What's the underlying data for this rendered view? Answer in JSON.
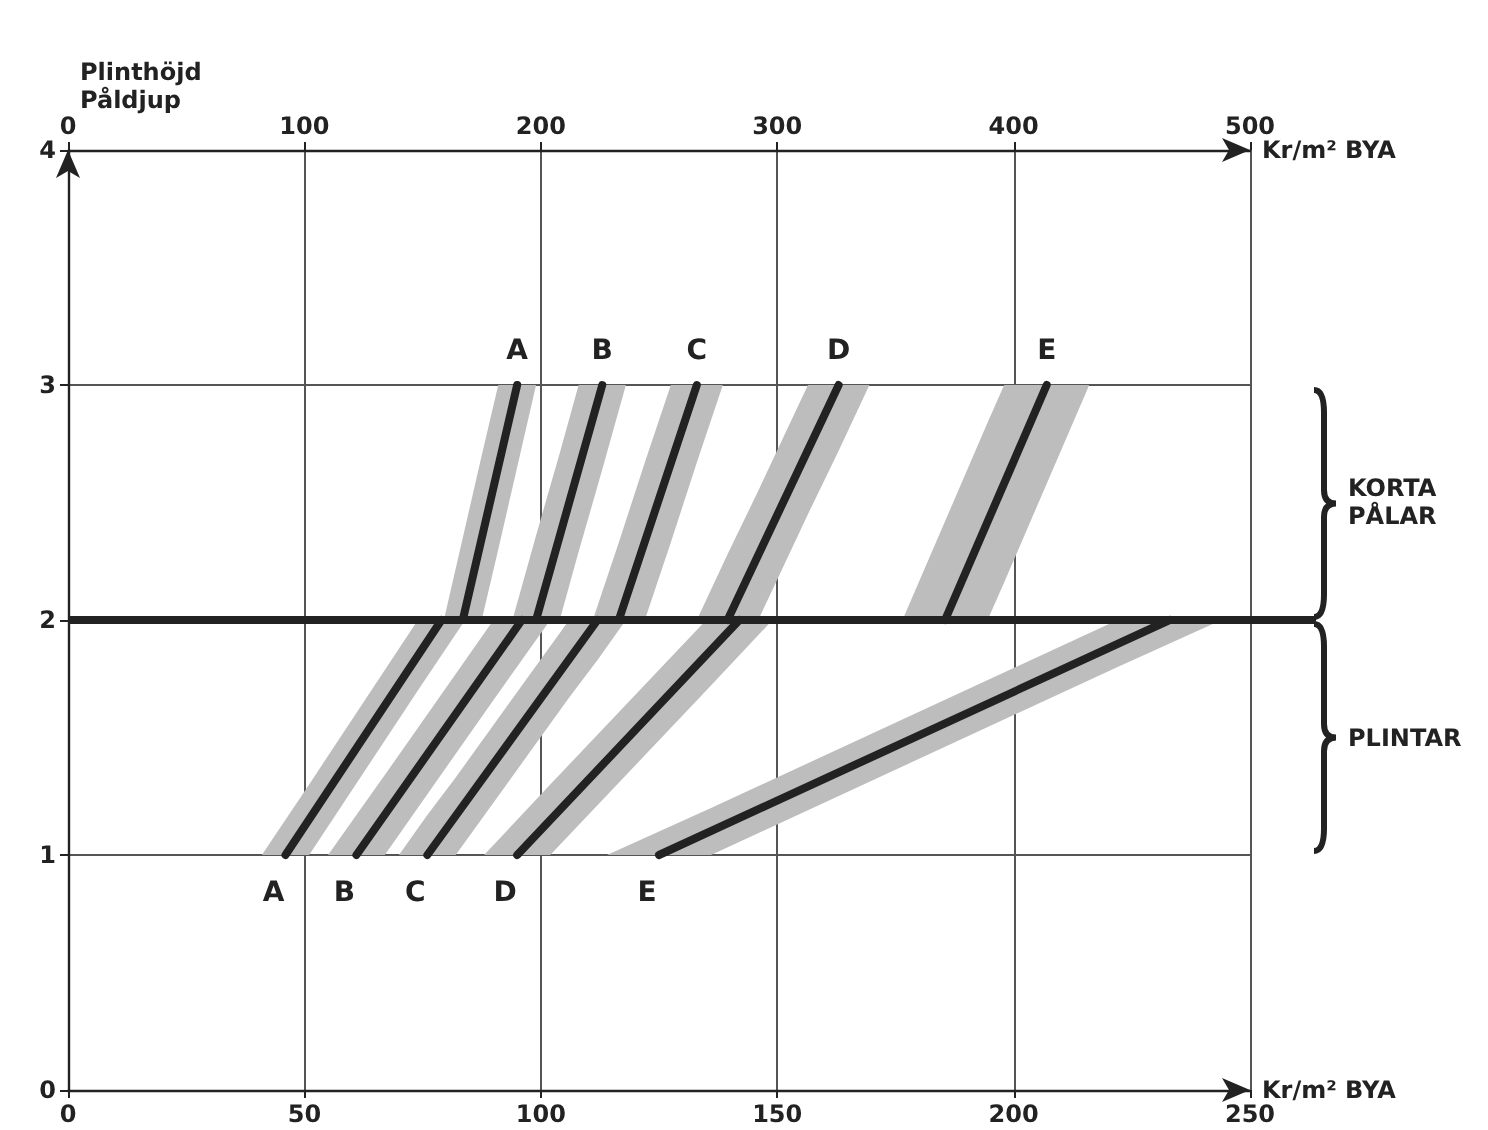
{
  "chart_data": {
    "type": "line",
    "ylabel": "Plinthöjd\nPåldjup",
    "xlabel": "Kr/m² BYA",
    "x2label": "Kr/m² BYA",
    "xlim": [
      0,
      250
    ],
    "xticks": [
      0,
      50,
      100,
      150,
      200,
      250
    ],
    "x2lim": [
      0,
      500
    ],
    "x2ticks": [
      0,
      100,
      200,
      300,
      400,
      500
    ],
    "ylim": [
      0,
      4
    ],
    "yticks": [
      0,
      1,
      2,
      3,
      4
    ],
    "grid": true,
    "series": [
      {
        "name": "A",
        "color": "#222222",
        "x": [
          41,
          46,
          51,
          74,
          79,
          84
        ],
        "values": [
          null,
          1,
          null,
          null,
          2,
          null
        ],
        "upper": [
          1,
          1.15,
          1.3,
          2,
          2,
          2
        ],
        "lower": [
          1,
          1,
          1,
          1.7,
          1.85,
          2
        ]
      },
      {
        "name": "B",
        "color": "#222222",
        "x": [
          55,
          61,
          67,
          90,
          96,
          102
        ],
        "values": [
          null,
          1,
          null,
          null,
          2,
          null
        ],
        "upper": [
          1,
          1.17,
          1.34,
          2,
          2,
          2
        ],
        "lower": [
          1,
          1,
          1,
          1.66,
          1.83,
          2
        ]
      },
      {
        "name": "C",
        "color": "#222222",
        "x": [
          70,
          76,
          82,
          106,
          112,
          118
        ],
        "values": [
          null,
          1,
          null,
          null,
          2,
          null
        ],
        "upper": [
          1,
          1.17,
          1.33,
          2,
          2,
          2
        ],
        "lower": [
          1,
          1,
          1,
          1.67,
          1.83,
          2
        ]
      },
      {
        "name": "D",
        "color": "#222222",
        "x": [
          88,
          95,
          102,
          135,
          142,
          149
        ],
        "values": [
          null,
          1,
          null,
          null,
          2,
          null
        ],
        "upper": [
          1,
          1.15,
          1.3,
          2,
          2,
          2
        ],
        "lower": [
          1,
          1,
          1,
          1.7,
          1.85,
          2
        ]
      },
      {
        "name": "E",
        "color": "#222222",
        "x": [
          114,
          125,
          136,
          222,
          233,
          244
        ],
        "values": [
          null,
          1,
          null,
          null,
          2,
          null
        ],
        "upper": [
          1,
          1.1,
          1.2,
          2,
          2,
          2
        ],
        "lower": [
          1,
          1,
          1,
          1.8,
          1.9,
          2
        ]
      },
      {
        "name": "A",
        "color": "#222222",
        "axis": "x2",
        "x": [
          159,
          167,
          175,
          182,
          190,
          198
        ],
        "values": [
          null,
          2,
          null,
          null,
          3,
          null
        ],
        "upper": [
          2,
          2.35,
          2.7,
          3,
          3,
          3
        ],
        "lower": [
          2,
          2,
          2,
          2.3,
          2.65,
          3
        ]
      },
      {
        "name": "B",
        "color": "#222222",
        "axis": "x2",
        "x": [
          188,
          198,
          208,
          216,
          226,
          236
        ],
        "values": [
          null,
          2,
          null,
          null,
          3,
          null
        ],
        "upper": [
          2,
          2.36,
          2.71,
          3,
          3,
          3
        ],
        "lower": [
          2,
          2,
          2,
          2.29,
          2.64,
          3
        ]
      },
      {
        "name": "C",
        "color": "#222222",
        "axis": "x2",
        "x": [
          222,
          233,
          244,
          255,
          266,
          277
        ],
        "values": [
          null,
          2,
          null,
          null,
          3,
          null
        ],
        "upper": [
          2,
          2.33,
          2.67,
          3,
          3,
          3
        ],
        "lower": [
          2,
          2,
          2,
          2.33,
          2.67,
          3
        ]
      },
      {
        "name": "D",
        "color": "#222222",
        "axis": "x2",
        "x": [
          266,
          279,
          292,
          313,
          326,
          339
        ],
        "values": [
          null,
          2,
          null,
          null,
          3,
          null
        ],
        "upper": [
          2,
          2.28,
          2.55,
          3,
          3,
          3
        ],
        "lower": [
          2,
          2,
          2,
          2.45,
          2.72,
          3
        ]
      },
      {
        "name": "E",
        "color": "#222222",
        "axis": "x2",
        "x": [
          353,
          371,
          389,
          396,
          414,
          432
        ],
        "values": [
          null,
          2,
          null,
          null,
          3,
          null
        ],
        "upper": [
          2,
          2.42,
          2.84,
          3,
          3,
          3
        ],
        "lower": [
          2,
          2,
          2,
          2.16,
          2.58,
          3
        ]
      }
    ],
    "ref_lines": [
      {
        "axis": "y",
        "value": 2,
        "color": "#222222"
      }
    ],
    "annotations": [
      "KORTA PÅLAR",
      "PLINTAR"
    ]
  }
}
